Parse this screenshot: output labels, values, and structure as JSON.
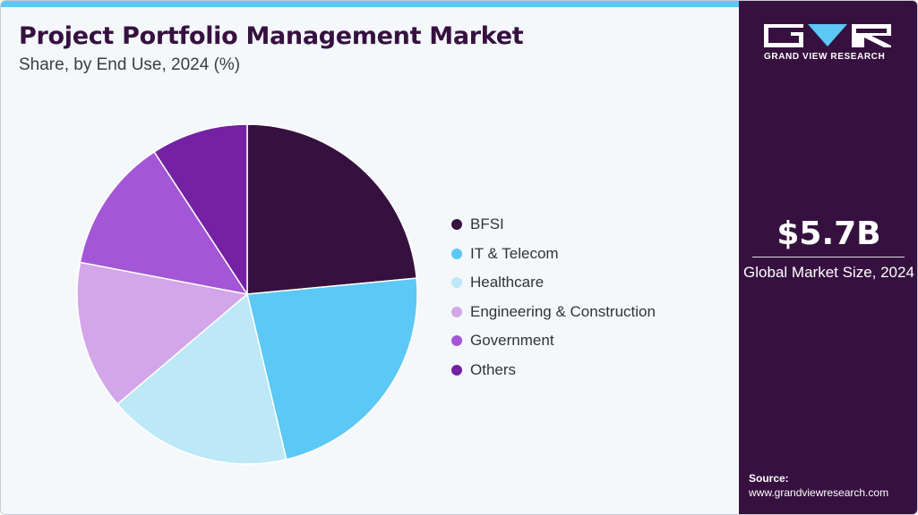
{
  "header": {
    "title": "Project Portfolio Management Market",
    "subtitle": "Share, by End Use, 2024 (%)"
  },
  "chart_data": {
    "type": "pie",
    "title": "Project Portfolio Management Market",
    "subtitle": "Share, by End Use, 2024 (%)",
    "start_angle_deg": 0,
    "direction": "clockwise",
    "legend_position": "right",
    "slices": [
      {
        "label": "BFSI",
        "value": 23.5,
        "color": "#361140"
      },
      {
        "label": "IT & Telecom",
        "value": 22.8,
        "color": "#5bc8f5"
      },
      {
        "label": "Healthcare",
        "value": 17.5,
        "color": "#bce8f8"
      },
      {
        "label": "Engineering & Construction",
        "value": 14.2,
        "color": "#d2a6e8"
      },
      {
        "label": "Government",
        "value": 12.8,
        "color": "#a356d6"
      },
      {
        "label": "Others",
        "value": 9.2,
        "color": "#7421a3"
      }
    ]
  },
  "sidebar": {
    "brand": "GRAND VIEW RESEARCH",
    "market_size_value": "$5.7B",
    "market_size_caption": "Global Market Size, 2024",
    "source_label": "Source:",
    "source_url": "www.grandviewresearch.com"
  },
  "colors": {
    "brand_purple": "#361140",
    "accent_blue": "#5bc8f5",
    "background": "#f4f8fb"
  }
}
